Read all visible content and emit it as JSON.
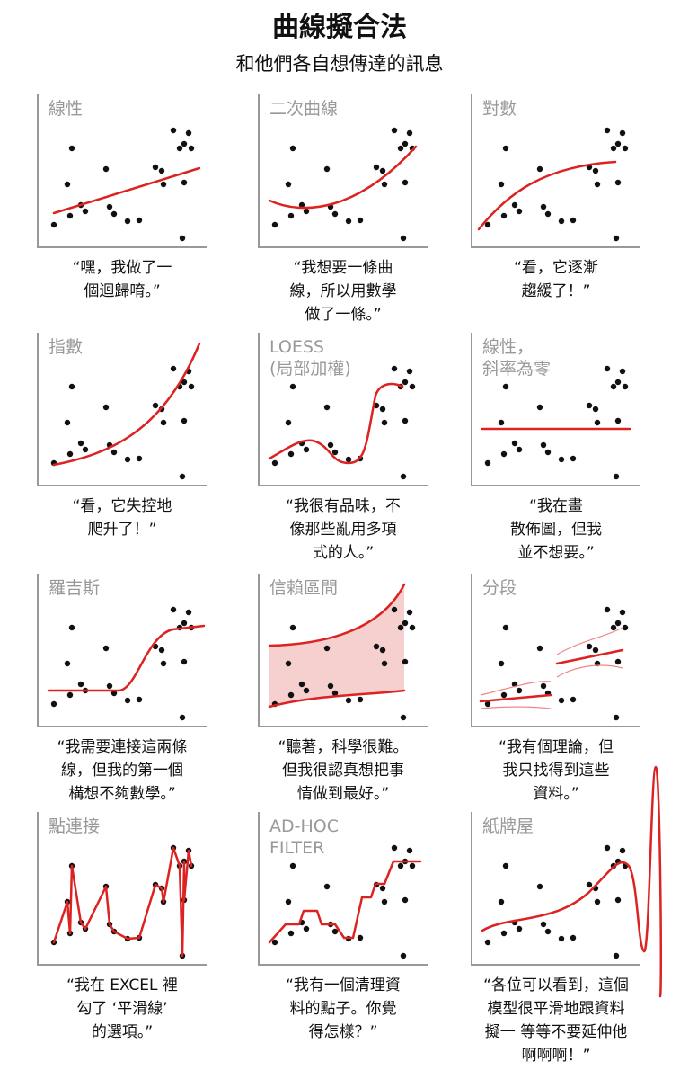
{
  "header": {
    "title": "曲線擬合法",
    "subtitle": "和他們各自想傳達的訊息"
  },
  "panels": [
    {
      "label": [
        "線性"
      ],
      "caption": [
        "“嘿，我做了一",
        "個迴歸唷。”"
      ]
    },
    {
      "label": [
        "二次曲線"
      ],
      "caption": [
        "“我想要一條曲",
        "線，所以用數學",
        "做了一條。”"
      ]
    },
    {
      "label": [
        "對數"
      ],
      "caption": [
        "“看，它逐漸",
        "趨緩了！”"
      ]
    },
    {
      "label": [
        "指數"
      ],
      "caption": [
        "“看，它失控地",
        "爬升了！”"
      ]
    },
    {
      "label": [
        "LOESS",
        "(局部加權)"
      ],
      "caption": [
        "“我很有品味，不",
        "像那些亂用多項",
        "式的人。”"
      ]
    },
    {
      "label": [
        "線性，",
        "斜率為零"
      ],
      "caption": [
        "“我在畫",
        "散佈圖，但我",
        "並不想要。”"
      ]
    },
    {
      "label": [
        "羅吉斯"
      ],
      "caption": [
        "“我需要連接這兩條",
        "線，但我的第一個",
        "構想不夠數學。”"
      ]
    },
    {
      "label": [
        "信賴區間"
      ],
      "caption": [
        "“聽著，科學很難。",
        "但我很認真想把事",
        "情做到最好。”"
      ]
    },
    {
      "label": [
        "分段"
      ],
      "caption": [
        "“我有個理論，但",
        "我只找得到這些",
        "資料。”"
      ]
    },
    {
      "label": [
        "點連接"
      ],
      "caption": [
        "“我在 EXCEL 裡",
        "勾了 ‘平滑線’",
        "的選項。”"
      ]
    },
    {
      "label": [
        "AD-HOC",
        "FILTER"
      ],
      "caption": [
        "“我有一個清理資",
        "料的點子。你覺",
        "得怎樣？”"
      ]
    },
    {
      "label": [
        "紙牌屋"
      ],
      "caption": [
        "“各位可以看到，這個",
        "模型很平滑地跟資料",
        "擬一 等等不要延伸他",
        "啊啊啊！”"
      ]
    }
  ]
}
